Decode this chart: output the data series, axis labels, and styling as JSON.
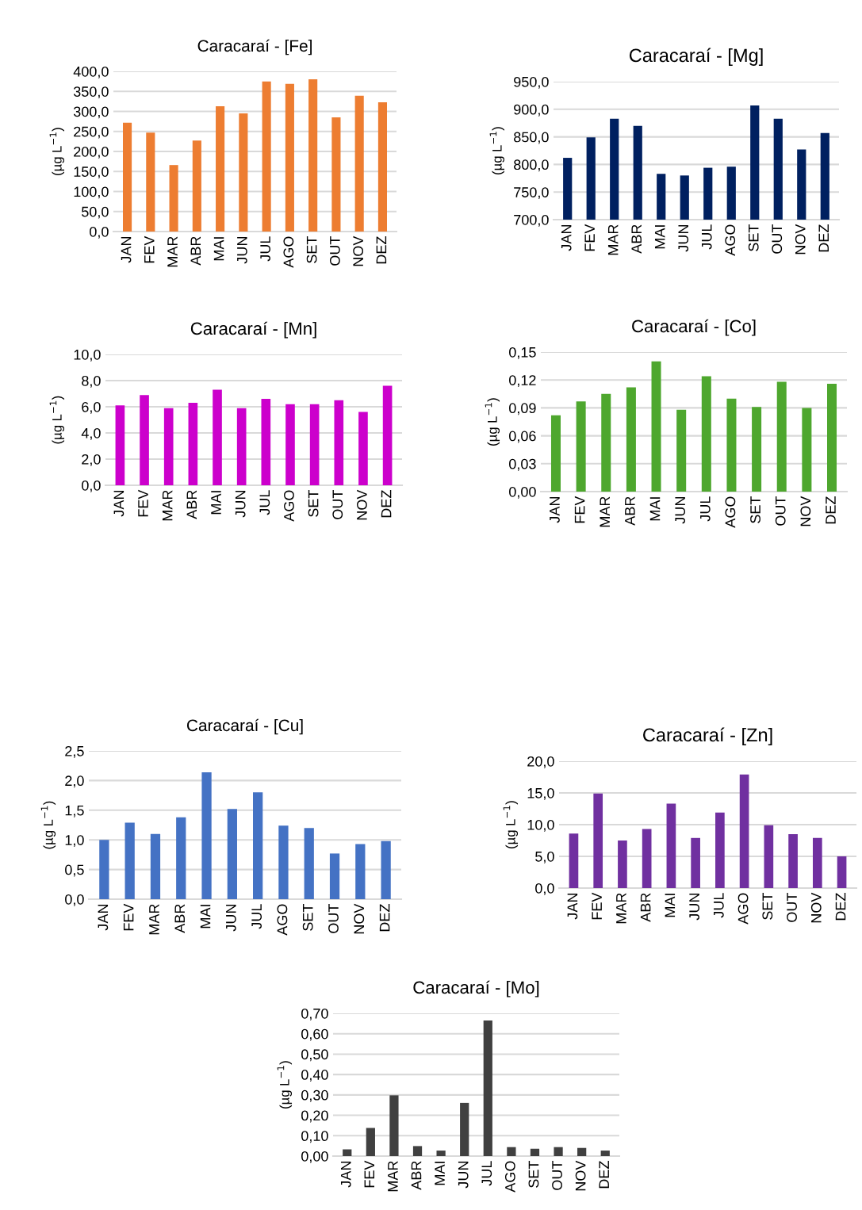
{
  "chart_data": [
    {
      "type": "bar",
      "title": "Caracaraí - [Fe]",
      "ylabel": "(µg L$^{−1}$)",
      "categories": [
        "JAN",
        "FEV",
        "MAR",
        "ABR",
        "MAI",
        "JUN",
        "JUL",
        "AGO",
        "SET",
        "OUT",
        "NOV",
        "DEZ"
      ],
      "color": "#ed7d31",
      "values": [
        272,
        247,
        166,
        227,
        313,
        295,
        375,
        369,
        380,
        285,
        339,
        323
      ],
      "ylim": [
        0,
        400
      ],
      "yticks": [
        {
          "value": 0,
          "label": "0,0"
        },
        {
          "value": 50,
          "label": "50,0"
        },
        {
          "value": 100,
          "label": "100,0"
        },
        {
          "value": 150,
          "label": "150,0"
        },
        {
          "value": 200,
          "label": "200,0"
        },
        {
          "value": 250,
          "label": "250,0"
        },
        {
          "value": 300,
          "label": "300,0"
        },
        {
          "value": 350,
          "label": "350,0"
        },
        {
          "value": 400,
          "label": "400,0"
        }
      ],
      "grid": "y"
    },
    {
      "type": "bar",
      "title": "Caracaraí - [Mg]",
      "ylabel": "(µg L$^{−1}$)",
      "categories": [
        "JAN",
        "FEV",
        "MAR",
        "ABR",
        "MAI",
        "JUN",
        "JUL",
        "AGO",
        "SET",
        "OUT",
        "NOV",
        "DEZ"
      ],
      "color": "#002060",
      "values": [
        812,
        849,
        883,
        870,
        783,
        780,
        794,
        796,
        907,
        883,
        827,
        857
      ],
      "ylim": [
        700,
        950
      ],
      "yticks": [
        {
          "value": 700,
          "label": "700,0"
        },
        {
          "value": 750,
          "label": "750,0"
        },
        {
          "value": 800,
          "label": "800,0"
        },
        {
          "value": 850,
          "label": "850,0"
        },
        {
          "value": 900,
          "label": "900,0"
        },
        {
          "value": 950,
          "label": "950,0"
        }
      ],
      "grid": "y"
    },
    {
      "type": "bar",
      "title": "Caracaraí - [Mn]",
      "ylabel": "(µg L$^{−1}$)",
      "categories": [
        "JAN",
        "FEV",
        "MAR",
        "ABR",
        "MAI",
        "JUN",
        "JUL",
        "AGO",
        "SET",
        "OUT",
        "NOV",
        "DEZ"
      ],
      "color": "#cc00cc",
      "values": [
        6.1,
        6.9,
        5.9,
        6.3,
        7.3,
        5.9,
        6.6,
        6.2,
        6.2,
        6.5,
        5.6,
        7.6
      ],
      "ylim": [
        0,
        10
      ],
      "yticks": [
        {
          "value": 0,
          "label": "0,0"
        },
        {
          "value": 2,
          "label": "2,0"
        },
        {
          "value": 4,
          "label": "4,0"
        },
        {
          "value": 6,
          "label": "6,0"
        },
        {
          "value": 8,
          "label": "8,0"
        },
        {
          "value": 10,
          "label": "10,0"
        }
      ],
      "grid": "y"
    },
    {
      "type": "bar",
      "title": "Caracaraí - [Co]",
      "ylabel": "(µg L$^{−1}$)",
      "categories": [
        "JAN",
        "FEV",
        "MAR",
        "ABR",
        "MAI",
        "JUN",
        "JUL",
        "AGO",
        "SET",
        "OUT",
        "NOV",
        "DEZ"
      ],
      "color": "#4ea72e",
      "values": [
        0.082,
        0.097,
        0.105,
        0.112,
        0.14,
        0.088,
        0.124,
        0.1,
        0.091,
        0.118,
        0.09,
        0.116
      ],
      "ylim": [
        0,
        0.15
      ],
      "yticks": [
        {
          "value": 0,
          "label": "0,00"
        },
        {
          "value": 0.03,
          "label": "0,03"
        },
        {
          "value": 0.06,
          "label": "0,06"
        },
        {
          "value": 0.09,
          "label": "0,09"
        },
        {
          "value": 0.12,
          "label": "0,12"
        },
        {
          "value": 0.15,
          "label": "0,15"
        }
      ],
      "grid": "y"
    },
    {
      "type": "bar",
      "title": "Caracaraí - [Cu]",
      "ylabel": "(µg L$^{−1}$)",
      "categories": [
        "JAN",
        "FEV",
        "MAR",
        "ABR",
        "MAI",
        "JUN",
        "JUL",
        "AGO",
        "SET",
        "OUT",
        "NOV",
        "DEZ"
      ],
      "color": "#4472c4",
      "values": [
        1.0,
        1.29,
        1.1,
        1.38,
        2.14,
        1.52,
        1.8,
        1.24,
        1.2,
        0.77,
        0.93,
        0.98
      ],
      "ylim": [
        0,
        2.5
      ],
      "yticks": [
        {
          "value": 0,
          "label": "0,0"
        },
        {
          "value": 0.5,
          "label": "0,5"
        },
        {
          "value": 1,
          "label": "1,0"
        },
        {
          "value": 1.5,
          "label": "1,5"
        },
        {
          "value": 2,
          "label": "2,0"
        },
        {
          "value": 2.5,
          "label": "2,5"
        }
      ],
      "grid": "y"
    },
    {
      "type": "bar",
      "title": "Caracaraí - [Zn]",
      "ylabel": "(µg L$^{−1}$)",
      "categories": [
        "JAN",
        "FEV",
        "MAR",
        "ABR",
        "MAI",
        "JUN",
        "JUL",
        "AGO",
        "SET",
        "OUT",
        "NOV",
        "DEZ"
      ],
      "color": "#7030a0",
      "values": [
        8.6,
        14.9,
        7.5,
        9.3,
        13.3,
        7.9,
        11.9,
        17.9,
        9.9,
        8.5,
        7.9,
        5.0
      ],
      "ylim": [
        0,
        20
      ],
      "yticks": [
        {
          "value": 0,
          "label": "0,0"
        },
        {
          "value": 5,
          "label": "5,0"
        },
        {
          "value": 10,
          "label": "10,0"
        },
        {
          "value": 15,
          "label": "15,0"
        },
        {
          "value": 20,
          "label": "20,0"
        }
      ],
      "grid": "y"
    },
    {
      "type": "bar",
      "title": "Caracaraí - [Mo]",
      "ylabel": "(µg L$^{−1}$)",
      "categories": [
        "JAN",
        "FEV",
        "MAR",
        "ABR",
        "MAI",
        "JUN",
        "JUL",
        "AGO",
        "SET",
        "OUT",
        "NOV",
        "DEZ"
      ],
      "color": "#404040",
      "values": [
        0.033,
        0.138,
        0.298,
        0.049,
        0.027,
        0.261,
        0.665,
        0.044,
        0.036,
        0.044,
        0.04,
        0.027
      ],
      "ylim": [
        0,
        0.7
      ],
      "yticks": [
        {
          "value": 0,
          "label": "0,00"
        },
        {
          "value": 0.1,
          "label": "0,10"
        },
        {
          "value": 0.2,
          "label": "0,20"
        },
        {
          "value": 0.3,
          "label": "0,30"
        },
        {
          "value": 0.4,
          "label": "0,40"
        },
        {
          "value": 0.5,
          "label": "0,50"
        },
        {
          "value": 0.6,
          "label": "0,60"
        },
        {
          "value": 0.7,
          "label": "0,70"
        }
      ],
      "grid": "y"
    }
  ]
}
